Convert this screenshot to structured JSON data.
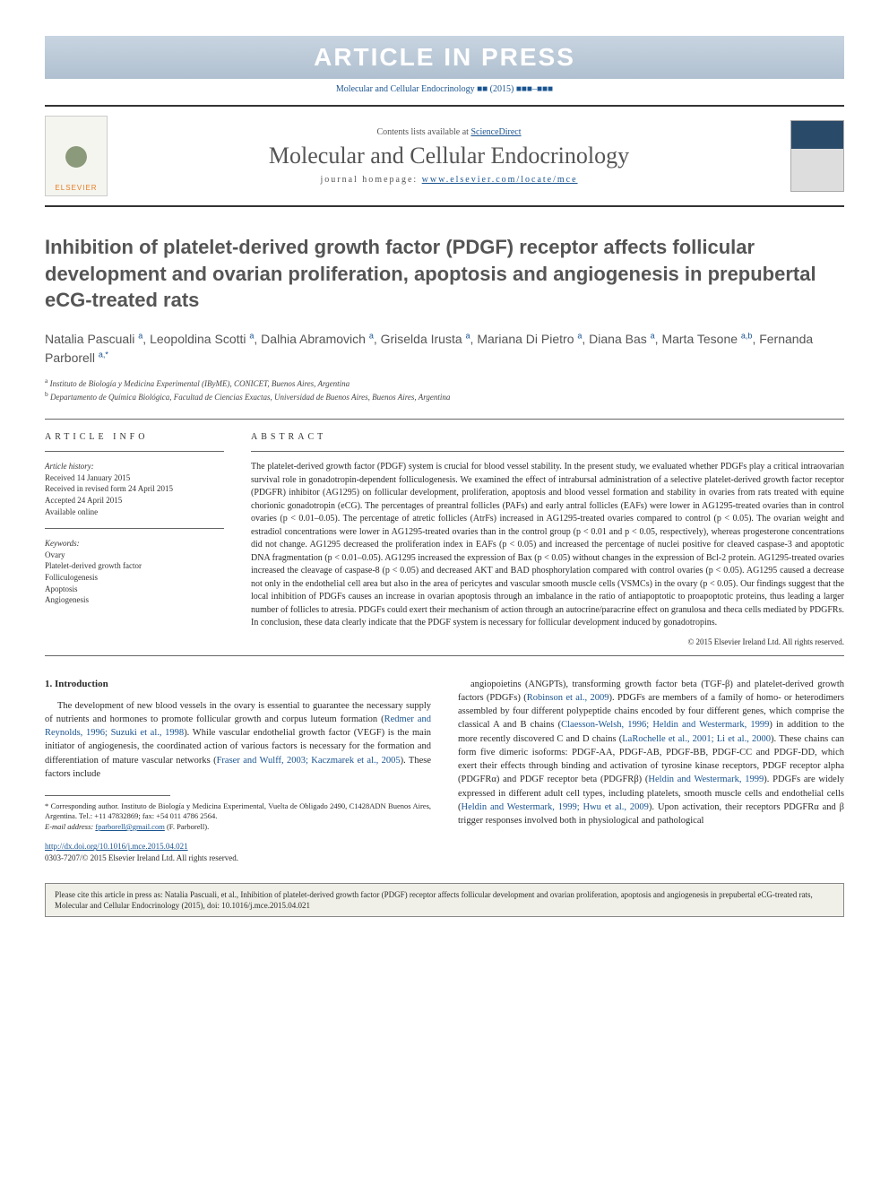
{
  "banner": "ARTICLE IN PRESS",
  "journal_ref": "Molecular and Cellular Endocrinology ■■ (2015) ■■■–■■■",
  "header": {
    "contents_prefix": "Contents lists available at ",
    "contents_link": "ScienceDirect",
    "journal_title": "Molecular and Cellular Endocrinology",
    "homepage_prefix": "journal homepage: ",
    "homepage_url": "www.elsevier.com/locate/mce",
    "publisher": "ELSEVIER"
  },
  "title": "Inhibition of platelet-derived growth factor (PDGF) receptor affects follicular development and ovarian proliferation, apoptosis and angiogenesis in prepubertal eCG-treated rats",
  "authors_html": "Natalia Pascuali <sup>a</sup>, Leopoldina Scotti <sup>a</sup>, Dalhia Abramovich <sup>a</sup>, Griselda Irusta <sup>a</sup>, Mariana Di Pietro <sup>a</sup>, Diana Bas <sup>a</sup>, Marta Tesone <sup>a,b</sup>, Fernanda Parborell <sup>a,*</sup>",
  "affiliations": [
    {
      "sup": "a",
      "text": "Instituto de Biología y Medicina Experimental (IByME), CONICET, Buenos Aires, Argentina"
    },
    {
      "sup": "b",
      "text": "Departamento de Química Biológica, Facultad de Ciencias Exactas, Universidad de Buenos Aires, Buenos Aires, Argentina"
    }
  ],
  "article_info": {
    "header": "ARTICLE INFO",
    "history_label": "Article history:",
    "history": [
      "Received 14 January 2015",
      "Received in revised form 24 April 2015",
      "Accepted 24 April 2015",
      "Available online"
    ],
    "keywords_label": "Keywords:",
    "keywords": [
      "Ovary",
      "Platelet-derived growth factor",
      "Folliculogenesis",
      "Apoptosis",
      "Angiogenesis"
    ]
  },
  "abstract": {
    "header": "ABSTRACT",
    "text": "The platelet-derived growth factor (PDGF) system is crucial for blood vessel stability. In the present study, we evaluated whether PDGFs play a critical intraovarian survival role in gonadotropin-dependent folliculogenesis. We examined the effect of intrabursal administration of a selective platelet-derived growth factor receptor (PDGFR) inhibitor (AG1295) on follicular development, proliferation, apoptosis and blood vessel formation and stability in ovaries from rats treated with equine chorionic gonadotropin (eCG). The percentages of preantral follicles (PAFs) and early antral follicles (EAFs) were lower in AG1295-treated ovaries than in control ovaries (p < 0.01–0.05). The percentage of atretic follicles (AtrFs) increased in AG1295-treated ovaries compared to control (p < 0.05). The ovarian weight and estradiol concentrations were lower in AG1295-treated ovaries than in the control group (p < 0.01 and p < 0.05, respectively), whereas progesterone concentrations did not change. AG1295 decreased the proliferation index in EAFs (p < 0.05) and increased the percentage of nuclei positive for cleaved caspase-3 and apoptotic DNA fragmentation (p < 0.01–0.05). AG1295 increased the expression of Bax (p < 0.05) without changes in the expression of Bcl-2 protein. AG1295-treated ovaries increased the cleavage of caspase-8 (p < 0.05) and decreased AKT and BAD phosphorylation compared with control ovaries (p < 0.05). AG1295 caused a decrease not only in the endothelial cell area but also in the area of pericytes and vascular smooth muscle cells (VSMCs) in the ovary (p < 0.05). Our findings suggest that the local inhibition of PDGFs causes an increase in ovarian apoptosis through an imbalance in the ratio of antiapoptotic to proapoptotic proteins, thus leading a larger number of follicles to atresia. PDGFs could exert their mechanism of action through an autocrine/paracrine effect on granulosa and theca cells mediated by PDGFRs. In conclusion, these data clearly indicate that the PDGF system is necessary for follicular development induced by gonadotropins.",
    "copyright": "© 2015 Elsevier Ireland Ltd. All rights reserved."
  },
  "body": {
    "section_number": "1.",
    "section_title": "Introduction",
    "col1": "The development of new blood vessels in the ovary is essential to guarantee the necessary supply of nutrients and hormones to promote follicular growth and corpus luteum formation (Redmer and Reynolds, 1996; Suzuki et al., 1998). While vascular endothelial growth factor (VEGF) is the main initiator of angiogenesis, the coordinated action of various factors is necessary for the formation and differentiation of mature vascular networks (Fraser and Wulff, 2003; Kaczmarek et al., 2005). These factors include",
    "col2": "angiopoietins (ANGPTs), transforming growth factor beta (TGF-β) and platelet-derived growth factors (PDGFs) (Robinson et al., 2009). PDGFs are members of a family of homo- or heterodimers assembled by four different polypeptide chains encoded by four different genes, which comprise the classical A and B chains (Claesson-Welsh, 1996; Heldin and Westermark, 1999) in addition to the more recently discovered C and D chains (LaRochelle et al., 2001; Li et al., 2000). These chains can form five dimeric isoforms: PDGF-AA, PDGF-AB, PDGF-BB, PDGF-CC and PDGF-DD, which exert their effects through binding and activation of tyrosine kinase receptors, PDGF receptor alpha (PDGFRα) and PDGF receptor beta (PDGFRβ) (Heldin and Westermark, 1999). PDGFs are widely expressed in different adult cell types, including platelets, smooth muscle cells and endothelial cells (Heldin and Westermark, 1999; Hwu et al., 2009). Upon activation, their receptors PDGFRα and β trigger responses involved both in physiological and pathological"
  },
  "footnotes": {
    "corresponding": "* Corresponding author. Instituto de Biología y Medicina Experimental, Vuelta de Obligado 2490, C1428ADN Buenos Aires, Argentina. Tel.: +11 47832869; fax: +54 011 4786 2564.",
    "email_label": "E-mail address: ",
    "email": "fparborell@gmail.com",
    "email_name": " (F. Parborell)."
  },
  "doi": {
    "url": "http://dx.doi.org/10.1016/j.mce.2015.04.021",
    "issn": "0303-7207/© 2015 Elsevier Ireland Ltd. All rights reserved."
  },
  "citation_box": "Please cite this article in press as: Natalia Pascuali, et al., Inhibition of platelet-derived growth factor (PDGF) receptor affects follicular development and ovarian proliferation, apoptosis and angiogenesis in prepubertal eCG-treated rats, Molecular and Cellular Endocrinology (2015), doi: 10.1016/j.mce.2015.04.021",
  "colors": {
    "link": "#1a5490",
    "banner_bg_top": "#c8d4e0",
    "banner_bg_bottom": "#b0c0d0",
    "text": "#2a2a2a",
    "muted": "#555555"
  }
}
